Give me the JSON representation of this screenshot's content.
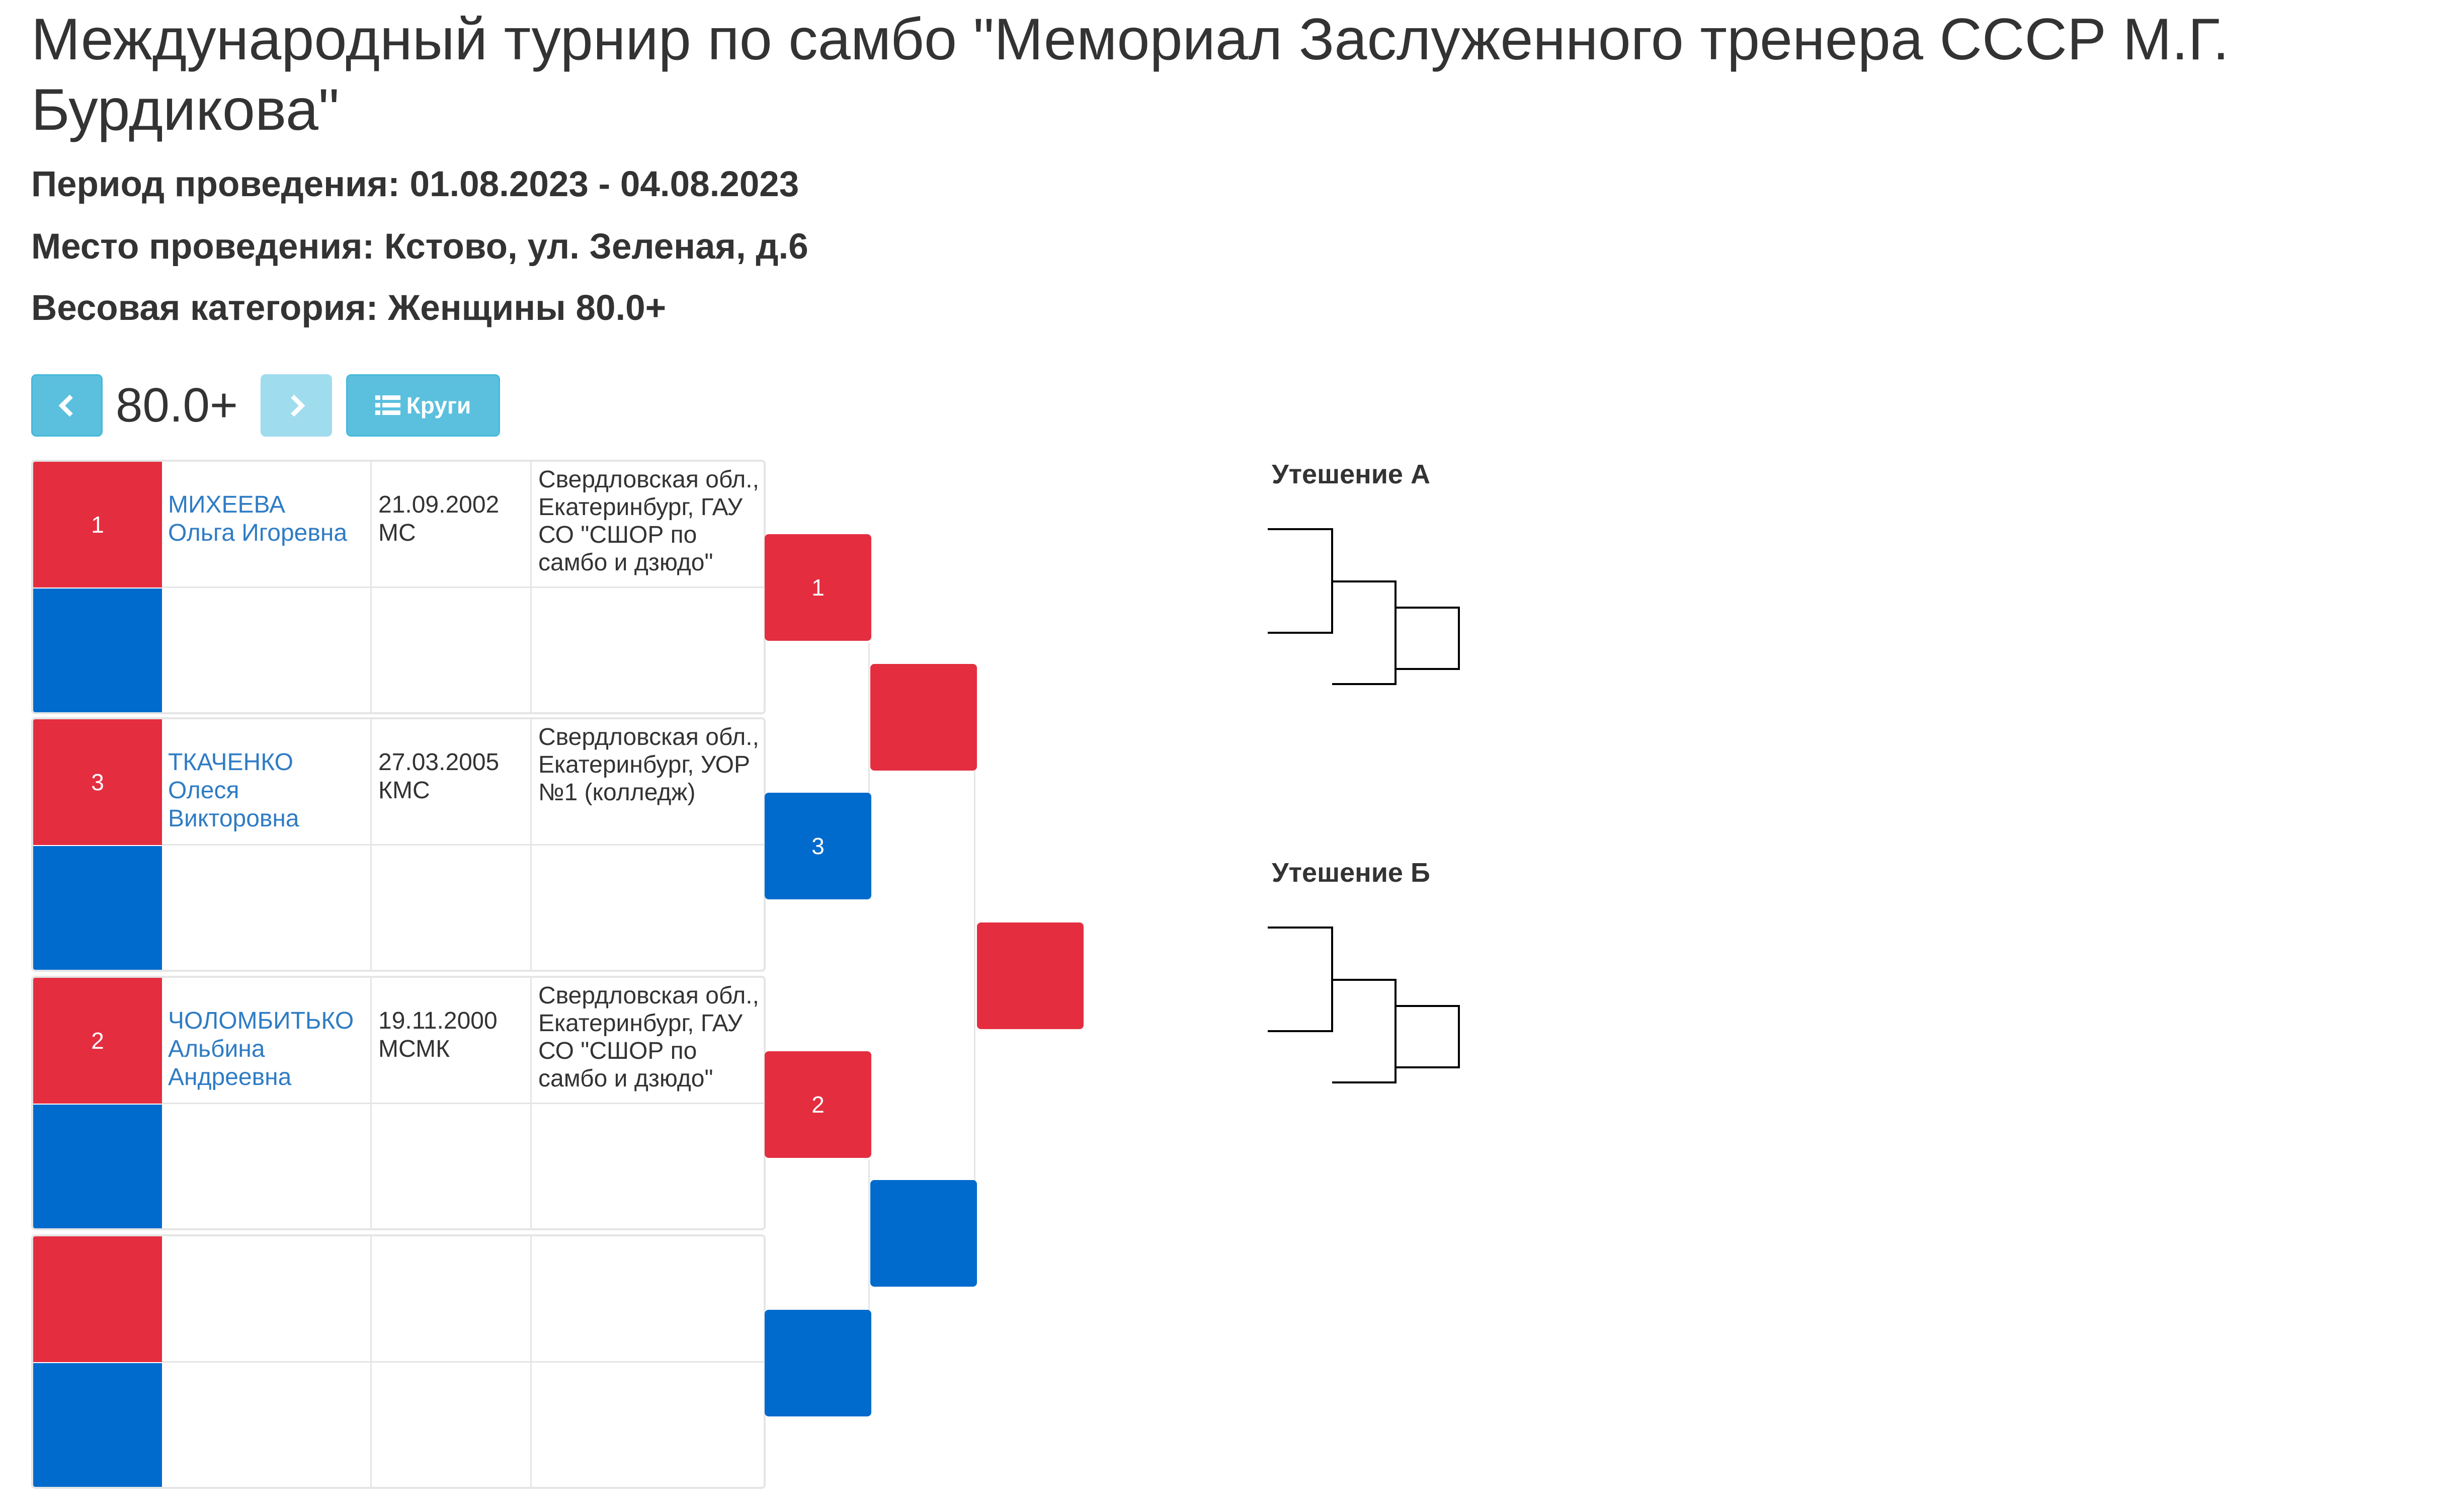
{
  "header": {
    "title": "Международный турнир по самбо \"Мемориал Заслуженного тренера СССР М.Г. Бурдикова\"",
    "period": "Период проведения: 01.08.2023 - 04.08.2023",
    "place": "Место проведения: Кстово, ул. Зеленая, д.6",
    "weight": "Весовая категория: Женщины 80.0+"
  },
  "toolbar": {
    "category": "80.0+",
    "circles_label": "Круги",
    "prev_icon": "chevron-left-icon",
    "next_icon": "chevron-right-icon",
    "list_icon": "list-icon"
  },
  "participants": [
    {
      "number": "1",
      "surname": "МИХЕЕВА",
      "given": "Ольга Игоревна",
      "birth": "21.09.2002",
      "rank": "МС",
      "club": "Свердловская обл., Екатеринбург, ГАУ СО \"СШОР по самбо и дзюдо\""
    },
    {
      "number": "3",
      "surname": "ТКАЧЕНКО",
      "given": "Олеся Викторовна",
      "birth": "27.03.2005",
      "rank": "КМС",
      "club": "Свердловская обл., Екатеринбург, УОР №1 (колледж)"
    },
    {
      "number": "2",
      "surname": "ЧОЛОМБИТЬКО",
      "given": "Альбина Андреевна",
      "birth": "19.11.2000",
      "rank": "МСМК",
      "club": "Свердловская обл., Екатеринбург, ГАУ СО \"СШОР по самбо и дзюдо\""
    },
    {
      "number": "",
      "surname": "",
      "given": "",
      "birth": "",
      "rank": "",
      "club": ""
    }
  ],
  "bracket": {
    "round1": [
      "1",
      "3",
      "2",
      ""
    ],
    "round2": [
      "",
      ""
    ],
    "final": [
      ""
    ]
  },
  "consolation": {
    "a_title": "Утешение А",
    "b_title": "Утешение Б"
  },
  "colors": {
    "red": "#e42e40",
    "blue": "#006bcd",
    "link": "#2f7cc4",
    "button": "#5bc0de"
  }
}
